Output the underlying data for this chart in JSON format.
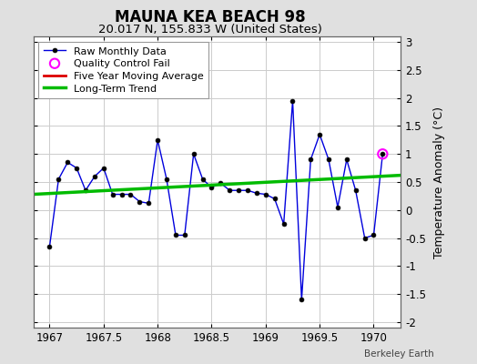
{
  "title": "MAUNA KEA BEACH 98",
  "subtitle": "20.017 N, 155.833 W (United States)",
  "ylabel": "Temperature Anomaly (°C)",
  "credit": "Berkeley Earth",
  "xlim": [
    1966.85,
    1970.25
  ],
  "ylim": [
    -2.1,
    3.1
  ],
  "yticks": [
    -2,
    -1.5,
    -1,
    -0.5,
    0,
    0.5,
    1,
    1.5,
    2,
    2.5,
    3
  ],
  "xticks": [
    1967,
    1967.5,
    1968,
    1968.5,
    1969,
    1969.5,
    1970
  ],
  "background_color": "#e0e0e0",
  "plot_bg_color": "#ffffff",
  "raw_x": [
    1967.0,
    1967.083,
    1967.167,
    1967.25,
    1967.333,
    1967.417,
    1967.5,
    1967.583,
    1967.667,
    1967.75,
    1967.833,
    1967.917,
    1968.0,
    1968.083,
    1968.167,
    1968.25,
    1968.333,
    1968.417,
    1968.5,
    1968.583,
    1968.667,
    1968.75,
    1968.833,
    1968.917,
    1969.0,
    1969.083,
    1969.167,
    1969.25,
    1969.333,
    1969.417,
    1969.5,
    1969.583,
    1969.667,
    1969.75,
    1969.833,
    1969.917,
    1970.0,
    1970.083
  ],
  "raw_y": [
    -0.65,
    0.55,
    0.85,
    0.75,
    0.35,
    0.6,
    0.75,
    0.28,
    0.28,
    0.28,
    0.15,
    0.12,
    1.25,
    0.55,
    -0.45,
    -0.45,
    1.0,
    0.55,
    0.4,
    0.48,
    0.35,
    0.35,
    0.35,
    0.3,
    0.28,
    0.2,
    -0.25,
    1.95,
    -1.6,
    0.9,
    1.35,
    0.9,
    0.05,
    0.9,
    0.35,
    -0.5,
    -0.45,
    1.0
  ],
  "qc_fail_x": [
    1970.083
  ],
  "qc_fail_y": [
    1.0
  ],
  "trend_x": [
    1966.85,
    1970.25
  ],
  "trend_y": [
    0.28,
    0.62
  ],
  "raw_color": "#0000dd",
  "raw_marker_color": "#000000",
  "qc_color": "#ff00ff",
  "trend_color": "#00bb00",
  "moving_avg_color": "#dd0000",
  "grid_color": "#cccccc",
  "title_fontsize": 12,
  "subtitle_fontsize": 9.5,
  "tick_fontsize": 8.5,
  "legend_fontsize": 8
}
